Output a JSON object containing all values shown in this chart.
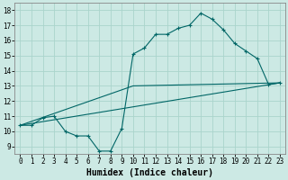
{
  "xlabel": "Humidex (Indice chaleur)",
  "ylabel": "",
  "xlim": [
    -0.5,
    23.5
  ],
  "ylim": [
    8.5,
    18.5
  ],
  "xticks": [
    0,
    1,
    2,
    3,
    4,
    5,
    6,
    7,
    8,
    9,
    10,
    11,
    12,
    13,
    14,
    15,
    16,
    17,
    18,
    19,
    20,
    21,
    22,
    23
  ],
  "yticks": [
    9,
    10,
    11,
    12,
    13,
    14,
    15,
    16,
    17,
    18
  ],
  "background_color": "#cce9e4",
  "grid_color": "#aad4cc",
  "line_color": "#006666",
  "line1_x": [
    0,
    1,
    2,
    3,
    4,
    5,
    6,
    7,
    8,
    9,
    10,
    11,
    12,
    13,
    14,
    15,
    16,
    17,
    18,
    19,
    20,
    21,
    22,
    23
  ],
  "line1_y": [
    10.4,
    10.4,
    10.9,
    11.0,
    10.0,
    9.7,
    9.7,
    8.7,
    8.7,
    10.2,
    15.1,
    15.5,
    16.4,
    16.4,
    16.8,
    17.0,
    17.8,
    17.4,
    16.7,
    15.8,
    15.3,
    14.8,
    13.1,
    13.2
  ],
  "line2_x": [
    0,
    23
  ],
  "line2_y": [
    10.4,
    13.2
  ],
  "line3_x": [
    0,
    10,
    23
  ],
  "line3_y": [
    10.4,
    13.0,
    13.2
  ],
  "tick_fontsize": 5.5,
  "label_fontsize": 7
}
